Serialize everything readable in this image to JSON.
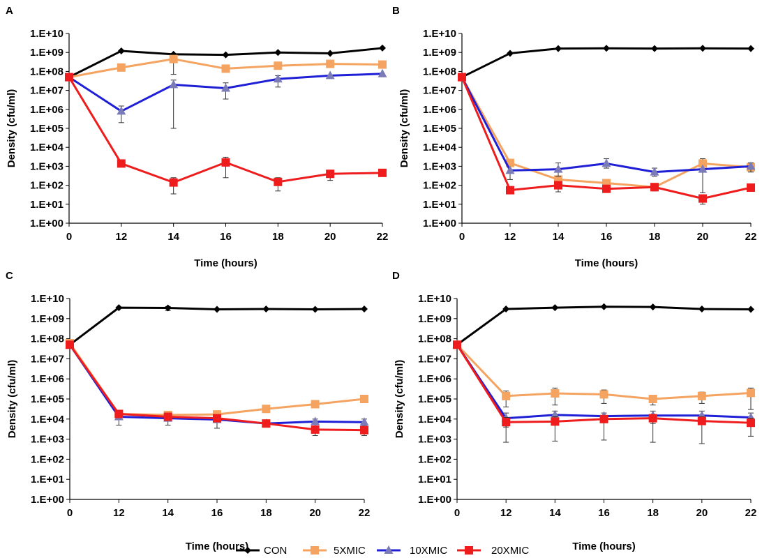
{
  "colors": {
    "CON": "#000000",
    "5XMIC": "#F4A460",
    "10XMIC": "#1F1FD6",
    "20XMIC": "#EE1C1C",
    "triangle_marker": "#7B7BB8"
  },
  "legend": {
    "placement": "bottom-center",
    "entries": [
      "CON",
      "5XMIC",
      "10XMIC",
      "20XMIC"
    ]
  },
  "chart_data": [
    {
      "type": "line",
      "panel_label": "A",
      "xlabel": "Time (hours)",
      "ylabel": "Density (cfu/ml)",
      "yscale": "log",
      "ylim": [
        1,
        10000000000
      ],
      "categories": [
        "0",
        "12",
        "14",
        "16",
        "18",
        "20",
        "22"
      ],
      "ytick_labels": [
        "1.E+00",
        "1.E+01",
        "1.E+02",
        "1.E+03",
        "1.E+04",
        "1.E+05",
        "1.E+06",
        "1.E+07",
        "1.E+08",
        "1.E+09",
        "1.E+10"
      ],
      "series": [
        {
          "name": "CON",
          "values": [
            50000000,
            1200000000,
            800000000,
            750000000,
            1000000000,
            900000000,
            1700000000
          ]
        },
        {
          "name": "5XMIC",
          "values": [
            50000000,
            160000000,
            450000000,
            140000000,
            200000000,
            250000000,
            230000000
          ],
          "err_low": [
            null,
            null,
            70000000,
            null,
            null,
            null,
            null
          ],
          "err_high": [
            null,
            null,
            600000000,
            null,
            null,
            null,
            null
          ]
        },
        {
          "name": "10XMIC",
          "values": [
            50000000,
            800000,
            20000000,
            13000000,
            40000000,
            60000000,
            75000000
          ],
          "err_low": [
            null,
            200000,
            100000,
            3500000,
            15000000,
            null,
            null
          ],
          "err_high": [
            null,
            1500000,
            35000000,
            25000000,
            60000000,
            null,
            null
          ]
        },
        {
          "name": "20XMIC",
          "values": [
            50000000,
            1400,
            140,
            1600,
            150,
            400,
            450
          ],
          "err_low": [
            null,
            null,
            35,
            250,
            50,
            180,
            null
          ],
          "err_high": [
            null,
            null,
            250,
            3000,
            250,
            500,
            null
          ]
        }
      ]
    },
    {
      "type": "line",
      "panel_label": "B",
      "xlabel": "Time (hours)",
      "ylabel": "Density (cfu/ml)",
      "yscale": "log",
      "ylim": [
        1,
        10000000000
      ],
      "categories": [
        "0",
        "12",
        "14",
        "16",
        "18",
        "20",
        "22"
      ],
      "ytick_labels": [
        "1.E+00",
        "1.E+01",
        "1.E+02",
        "1.E+03",
        "1.E+04",
        "1.E+05",
        "1.E+06",
        "1.E+07",
        "1.E+08",
        "1.E+09",
        "1.E+10"
      ],
      "series": [
        {
          "name": "CON",
          "values": [
            50000000,
            900000000,
            1600000000,
            1650000000,
            1600000000,
            1650000000,
            1600000000
          ]
        },
        {
          "name": "5XMIC",
          "values": [
            50000000,
            1500,
            200,
            130,
            80,
            1400,
            900
          ],
          "err_low": [
            null,
            null,
            null,
            null,
            null,
            null,
            500
          ],
          "err_high": [
            null,
            null,
            null,
            null,
            null,
            2500,
            1500
          ]
        },
        {
          "name": "10XMIC",
          "values": [
            50000000,
            600,
            700,
            1400,
            500,
            700,
            1000
          ],
          "err_low": [
            null,
            200,
            300,
            800,
            300,
            40,
            500
          ],
          "err_high": [
            null,
            null,
            1500,
            2500,
            800,
            null,
            1500
          ]
        },
        {
          "name": "20XMIC",
          "values": [
            50000000,
            55,
            100,
            65,
            80,
            20,
            75
          ],
          "err_low": [
            null,
            null,
            45,
            null,
            50,
            10,
            null
          ],
          "err_high": [
            null,
            null,
            150,
            null,
            100,
            30,
            null
          ]
        }
      ]
    },
    {
      "type": "line",
      "panel_label": "C",
      "xlabel": "Time (hours)",
      "ylabel": "Density (cfu/ml)",
      "yscale": "log",
      "ylim": [
        1,
        10000000000
      ],
      "categories": [
        "0",
        "12",
        "14",
        "16",
        "18",
        "20",
        "22"
      ],
      "ytick_labels": [
        "1.E+00",
        "1.E+01",
        "1.E+02",
        "1.E+03",
        "1.E+04",
        "1.E+05",
        "1.E+06",
        "1.E+07",
        "1.E+08",
        "1.E+09",
        "1.E+10"
      ],
      "series": [
        {
          "name": "CON",
          "values": [
            50000000,
            3500000000,
            3400000000,
            2900000000,
            3000000000,
            2900000000,
            3000000000
          ],
          "err_low": [
            null,
            null,
            2500000000,
            null,
            null,
            null,
            null
          ],
          "err_high": [
            null,
            null,
            4000000000,
            null,
            null,
            null,
            null
          ]
        },
        {
          "name": "5XMIC",
          "values": [
            60000000,
            18000,
            16000,
            17000,
            32000,
            55000,
            100000
          ]
        },
        {
          "name": "10XMIC",
          "values": [
            50000000,
            13000,
            11000,
            9500,
            6000,
            7500,
            7000
          ],
          "err_low": [
            null,
            5000,
            5000,
            3500,
            null,
            4000,
            4500
          ],
          "err_high": [
            null,
            20000,
            15000,
            11000,
            null,
            10000,
            10000
          ]
        },
        {
          "name": "20XMIC",
          "values": [
            50000000,
            18000,
            13000,
            11000,
            6000,
            3000,
            2800
          ],
          "err_low": [
            null,
            null,
            null,
            null,
            null,
            1500,
            1500
          ],
          "err_high": [
            null,
            null,
            null,
            null,
            null,
            4000,
            3500
          ]
        }
      ]
    },
    {
      "type": "line",
      "panel_label": "D",
      "xlabel": "Time (hours)",
      "ylabel": "Density (cfu/ml)",
      "yscale": "log",
      "ylim": [
        1,
        10000000000
      ],
      "categories": [
        "0",
        "12",
        "14",
        "16",
        "18",
        "20",
        "22"
      ],
      "ytick_labels": [
        "1.E+00",
        "1.E+01",
        "1.E+02",
        "1.E+03",
        "1.E+04",
        "1.E+05",
        "1.E+06",
        "1.E+07",
        "1.E+08",
        "1.E+09",
        "1.E+10"
      ],
      "series": [
        {
          "name": "CON",
          "values": [
            50000000,
            3000000000,
            3500000000,
            3900000000,
            3800000000,
            3000000000,
            2900000000
          ]
        },
        {
          "name": "5XMIC",
          "values": [
            50000000,
            140000,
            190000,
            170000,
            100000,
            140000,
            200000
          ],
          "err_low": [
            null,
            40000,
            50000,
            60000,
            50000,
            60000,
            30000
          ],
          "err_high": [
            null,
            250000,
            350000,
            280000,
            150000,
            220000,
            350000
          ]
        },
        {
          "name": "10XMIC",
          "values": [
            50000000,
            11000,
            16000,
            14000,
            15000,
            15000,
            12000
          ],
          "err_low": [
            null,
            4000,
            7000,
            7000,
            6000,
            6000,
            5000
          ],
          "err_high": [
            null,
            20000,
            25000,
            20000,
            25000,
            25000,
            20000
          ]
        },
        {
          "name": "20XMIC",
          "values": [
            50000000,
            7000,
            7500,
            10000,
            11000,
            8000,
            6500
          ],
          "err_low": [
            null,
            700,
            800,
            900,
            700,
            600,
            1400
          ],
          "err_high": [
            null,
            12000,
            13000,
            15000,
            17000,
            13000,
            11000
          ]
        }
      ]
    }
  ]
}
